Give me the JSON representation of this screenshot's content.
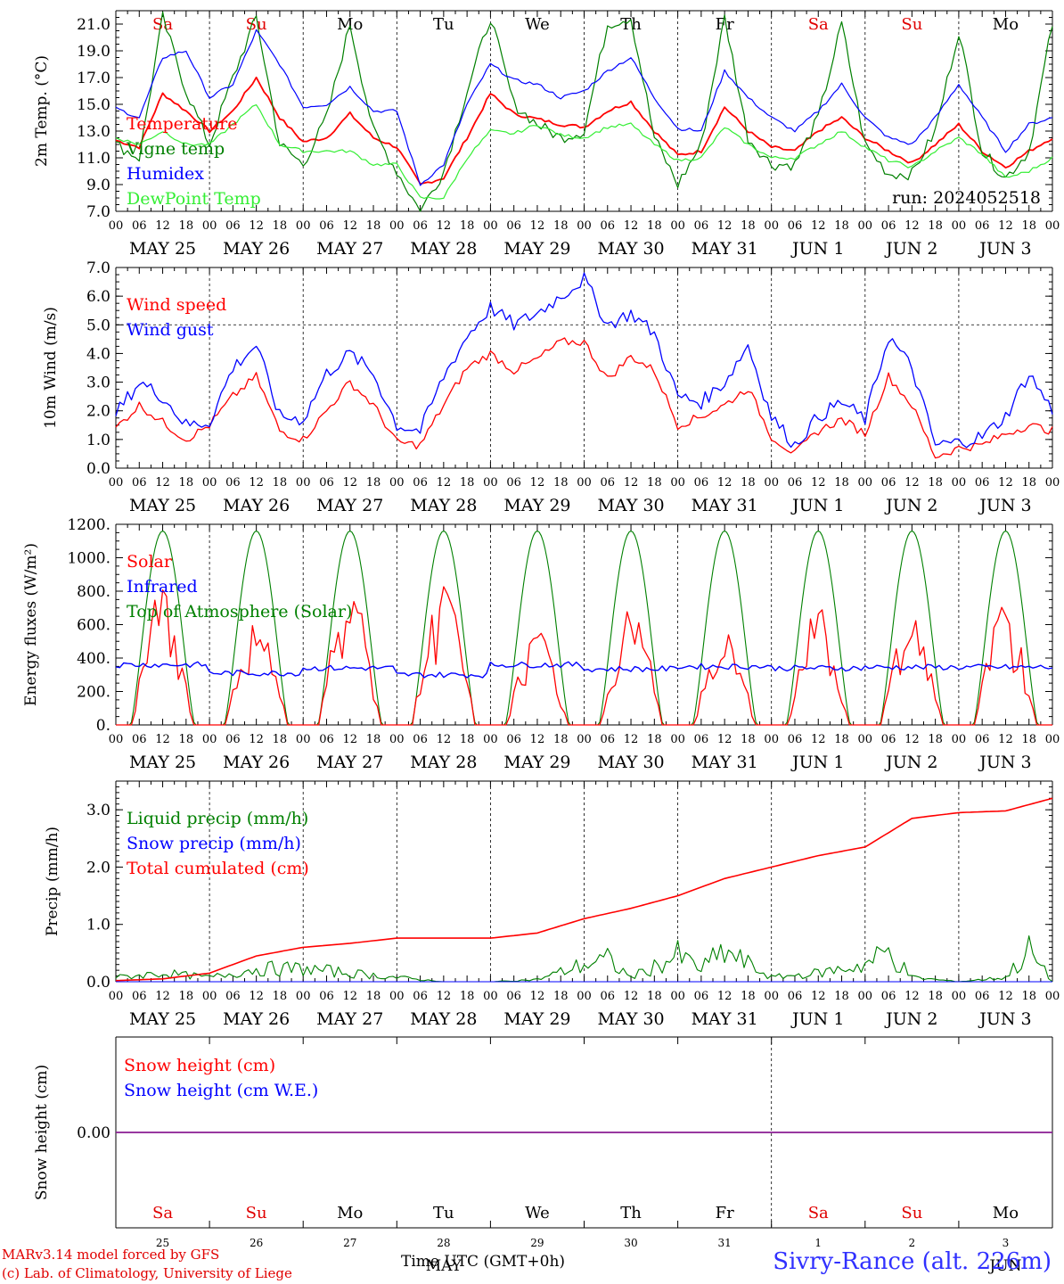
{
  "chart_data": [
    {
      "type": "line",
      "ylabel": "2m Temp. (°C)",
      "ylim": [
        7.0,
        22.0
      ],
      "yticks": [
        7.0,
        9.0,
        11.0,
        13.0,
        15.0,
        17.0,
        19.0,
        21.0
      ],
      "x_hours": [
        0,
        6,
        12,
        18
      ],
      "days": [
        "MAY 25",
        "MAY 26",
        "MAY 27",
        "MAY 28",
        "MAY 29",
        "MAY 30",
        "MAY 31",
        "JUN  1",
        "JUN  2",
        "JUN  3"
      ],
      "weekdays": [
        "Sa",
        "Su",
        "Mo",
        "Tu",
        "We",
        "Th",
        "Fr",
        "Sa",
        "Su",
        "Mo"
      ],
      "weekday_colors": [
        "#e00000",
        "#e00000",
        "#000000",
        "#000000",
        "#000000",
        "#000000",
        "#000000",
        "#e00000",
        "#e00000",
        "#000000"
      ],
      "annotation": "run: 2024052518",
      "series": [
        {
          "name": "Temperature",
          "color": "#ff0000",
          "x": [
            0,
            6,
            12,
            18,
            24,
            30,
            36,
            42,
            48,
            54,
            60,
            66,
            72,
            78,
            84,
            90,
            96,
            102,
            108,
            114,
            120,
            126,
            132,
            138,
            144,
            150,
            156,
            162,
            168,
            174,
            180,
            186,
            192,
            198,
            204,
            210,
            216,
            222,
            228,
            234,
            240
          ],
          "values": [
            12.3,
            11.8,
            15.8,
            14.5,
            13.0,
            14.5,
            17.0,
            14.0,
            12.2,
            12.5,
            14.3,
            12.5,
            11.8,
            9.0,
            9.5,
            12.5,
            15.8,
            14.3,
            13.9,
            13.5,
            13.3,
            14.5,
            15.2,
            13.0,
            11.2,
            11.5,
            14.8,
            13.0,
            11.8,
            11.5,
            13.0,
            14.0,
            12.5,
            11.5,
            10.6,
            12.0,
            13.5,
            11.5,
            10.3,
            11.5,
            12.5
          ]
        },
        {
          "name": "Vigne temp",
          "color": "#008000",
          "x": [
            0,
            6,
            12,
            18,
            24,
            30,
            36,
            42,
            48,
            54,
            60,
            66,
            72,
            78,
            84,
            90,
            96,
            102,
            108,
            114,
            120,
            126,
            132,
            138,
            144,
            150,
            156,
            162,
            168,
            174,
            180,
            186,
            192,
            198,
            204,
            210,
            216,
            222,
            228,
            234,
            240
          ],
          "values": [
            12.0,
            11.0,
            21.5,
            16.0,
            12.0,
            17.0,
            21.5,
            12.0,
            10.5,
            14.0,
            21.0,
            13.0,
            10.0,
            7.0,
            10.0,
            16.0,
            21.5,
            15.0,
            13.5,
            12.5,
            13.0,
            21.0,
            21.5,
            12.5,
            9.0,
            12.0,
            21.5,
            12.5,
            10.5,
            10.5,
            14.0,
            21.0,
            12.0,
            9.8,
            9.8,
            13.0,
            20.5,
            11.5,
            9.5,
            11.5,
            21.0
          ]
        },
        {
          "name": "Humidex",
          "color": "#0000ff",
          "x": [
            0,
            6,
            12,
            18,
            24,
            30,
            36,
            42,
            48,
            54,
            60,
            66,
            72,
            78,
            84,
            90,
            96,
            102,
            108,
            114,
            120,
            126,
            132,
            138,
            144,
            150,
            156,
            162,
            168,
            174,
            180,
            186,
            192,
            198,
            204,
            210,
            216,
            222,
            228,
            234,
            240
          ],
          "values": [
            14.7,
            14.0,
            18.5,
            19.0,
            15.5,
            16.5,
            20.5,
            18.0,
            14.8,
            15.0,
            16.3,
            14.5,
            14.5,
            9.0,
            10.5,
            15.0,
            18.0,
            16.8,
            16.5,
            15.5,
            16.0,
            17.5,
            18.5,
            15.5,
            13.2,
            13.0,
            17.5,
            15.5,
            14.0,
            13.0,
            14.5,
            16.5,
            14.0,
            12.5,
            12.0,
            14.0,
            16.5,
            14.0,
            11.5,
            13.5,
            14.0
          ]
        },
        {
          "name": "DewPoint Temp",
          "color": "#33ee33",
          "x": [
            0,
            6,
            12,
            18,
            24,
            30,
            36,
            42,
            48,
            54,
            60,
            66,
            72,
            78,
            84,
            90,
            96,
            102,
            108,
            114,
            120,
            126,
            132,
            138,
            144,
            150,
            156,
            162,
            168,
            174,
            180,
            186,
            192,
            198,
            204,
            210,
            216,
            222,
            228,
            234,
            240
          ],
          "values": [
            12.5,
            12.0,
            13.0,
            12.0,
            12.0,
            13.5,
            15.0,
            12.0,
            11.5,
            11.5,
            11.5,
            10.5,
            10.5,
            8.0,
            8.0,
            11.0,
            13.0,
            12.8,
            13.5,
            12.7,
            12.5,
            13.3,
            13.5,
            12.0,
            10.8,
            11.0,
            13.3,
            12.0,
            11.0,
            11.0,
            12.0,
            13.0,
            11.8,
            10.8,
            10.3,
            11.5,
            12.5,
            11.3,
            9.5,
            10.0,
            11.0
          ]
        }
      ]
    },
    {
      "type": "line",
      "ylabel": "10m Wind (m/s)",
      "ylim": [
        0.0,
        7.0
      ],
      "yticks": [
        0.0,
        1.0,
        2.0,
        3.0,
        4.0,
        5.0,
        6.0,
        7.0
      ],
      "x_hours": [
        0,
        6,
        12,
        18
      ],
      "days": [
        "MAY 25",
        "MAY 26",
        "MAY 27",
        "MAY 28",
        "MAY 29",
        "MAY 30",
        "MAY 31",
        "JUN  1",
        "JUN  2",
        "JUN  3"
      ],
      "reference_line": 5.0,
      "series": [
        {
          "name": "Wind speed",
          "color": "#ff0000",
          "x": [
            0,
            6,
            12,
            18,
            24,
            30,
            36,
            42,
            48,
            54,
            60,
            66,
            72,
            78,
            84,
            90,
            96,
            102,
            108,
            114,
            120,
            126,
            132,
            138,
            144,
            150,
            156,
            162,
            168,
            174,
            180,
            186,
            192,
            198,
            204,
            210,
            216,
            222,
            228,
            234,
            240
          ],
          "values": [
            1.4,
            2.2,
            1.6,
            1.0,
            1.5,
            2.5,
            3.2,
            1.3,
            1.0,
            2.0,
            3.0,
            2.2,
            0.9,
            0.8,
            2.2,
            3.5,
            4.0,
            3.4,
            3.8,
            4.4,
            4.4,
            3.1,
            3.9,
            3.4,
            1.5,
            1.8,
            2.2,
            2.8,
            1.1,
            0.5,
            1.3,
            1.7,
            1.2,
            3.2,
            2.2,
            0.4,
            0.7,
            0.8,
            1.2,
            1.5,
            1.3
          ]
        },
        {
          "name": "Wind gust",
          "color": "#0000ff",
          "x": [
            0,
            6,
            12,
            18,
            24,
            30,
            36,
            42,
            48,
            54,
            60,
            66,
            72,
            78,
            84,
            90,
            96,
            102,
            108,
            114,
            120,
            126,
            132,
            138,
            144,
            150,
            156,
            162,
            168,
            174,
            180,
            186,
            192,
            198,
            204,
            210,
            216,
            222,
            228,
            234,
            240
          ],
          "values": [
            1.9,
            3.0,
            2.5,
            1.5,
            1.6,
            3.5,
            4.3,
            1.8,
            1.7,
            3.3,
            4.0,
            3.3,
            1.5,
            1.3,
            3.2,
            4.6,
            5.6,
            5.0,
            5.4,
            6.0,
            6.6,
            5.0,
            5.4,
            4.7,
            2.5,
            2.3,
            3.0,
            4.3,
            1.8,
            0.8,
            1.8,
            2.3,
            1.7,
            4.6,
            3.5,
            0.8,
            0.9,
            1.1,
            1.8,
            3.3,
            2.0
          ]
        }
      ]
    },
    {
      "type": "line",
      "ylabel": "Energy fluxes (W/m²)",
      "ylim": [
        0,
        1200
      ],
      "yticks": [
        0,
        200,
        400,
        600,
        800,
        1000,
        1200
      ],
      "ytick_labels": [
        "0.",
        "200.",
        "400.",
        "600.",
        "800.",
        "1000.",
        "1200."
      ],
      "x_hours": [
        0,
        6,
        12,
        18
      ],
      "days": [
        "MAY 25",
        "MAY 26",
        "MAY 27",
        "MAY 28",
        "MAY 29",
        "MAY 30",
        "MAY 31",
        "JUN  1",
        "JUN  2",
        "JUN  3"
      ],
      "series": [
        {
          "name": "Solar",
          "color": "#ff0000",
          "peaks": [
            820,
            670,
            860,
            840,
            560,
            690,
            540,
            710,
            680,
            720
          ]
        },
        {
          "name": "Infrared",
          "color": "#0000ff",
          "values_daily": [
            360,
            310,
            340,
            300,
            360,
            335,
            350,
            340,
            345,
            345
          ]
        },
        {
          "name": "Top of Atmosphere (Solar)",
          "color": "#008000",
          "peak": 1160
        }
      ]
    },
    {
      "type": "line",
      "ylabel": "Precip (mm/h)",
      "ylim": [
        0.0,
        3.5
      ],
      "yticks": [
        0.0,
        1.0,
        2.0,
        3.0
      ],
      "x_hours": [
        0,
        6,
        12,
        18
      ],
      "days": [
        "MAY 25",
        "MAY 26",
        "MAY 27",
        "MAY 28",
        "MAY 29",
        "MAY 30",
        "MAY 31",
        "JUN  1",
        "JUN  2",
        "JUN  3"
      ],
      "series": [
        {
          "name": "Liquid precip (mm/h)",
          "color": "#008000",
          "x": [
            0,
            12,
            24,
            36,
            48,
            60,
            72,
            84,
            96,
            108,
            120,
            126,
            132,
            144,
            150,
            156,
            168,
            180,
            192,
            198,
            204,
            216,
            228,
            234,
            240
          ],
          "values": [
            0.1,
            0.2,
            0.1,
            0.3,
            0.3,
            0.2,
            0.1,
            0.0,
            0.0,
            0.05,
            0.4,
            0.5,
            0.1,
            0.6,
            0.3,
            0.7,
            0.1,
            0.2,
            0.4,
            0.7,
            0.1,
            0.0,
            0.1,
            0.7,
            0.0
          ]
        },
        {
          "name": "Snow precip (mm/h)",
          "color": "#0000ff",
          "x": [
            0,
            240
          ],
          "values": [
            0.0,
            0.0
          ]
        },
        {
          "name": "Total cumulated (cm)",
          "color": "#ff0000",
          "x": [
            0,
            12,
            24,
            36,
            48,
            60,
            72,
            84,
            96,
            108,
            120,
            132,
            144,
            156,
            168,
            180,
            192,
            198,
            204,
            216,
            228,
            240
          ],
          "values": [
            0.02,
            0.05,
            0.15,
            0.45,
            0.6,
            0.67,
            0.76,
            0.76,
            0.76,
            0.85,
            1.1,
            1.28,
            1.5,
            1.8,
            2.0,
            2.2,
            2.35,
            2.6,
            2.85,
            2.95,
            2.98,
            3.2
          ]
        }
      ]
    },
    {
      "type": "line",
      "ylabel": "Snow height (cm)",
      "ylim": [
        -1.0,
        1.0
      ],
      "yticks": [
        0.0
      ],
      "ytick_labels": [
        "0.00"
      ],
      "days_short": [
        "25",
        "26",
        "27",
        "28",
        "29",
        "30",
        "31",
        "1",
        "2",
        "3"
      ],
      "weekdays": [
        "Sa",
        "Su",
        "Mo",
        "Tu",
        "We",
        "Th",
        "Fr",
        "Sa",
        "Su",
        "Mo"
      ],
      "weekday_colors": [
        "#e00000",
        "#e00000",
        "#000000",
        "#000000",
        "#000000",
        "#000000",
        "#000000",
        "#e00000",
        "#e00000",
        "#000000"
      ],
      "month_labels": [
        "MAY",
        "JUN"
      ],
      "series": [
        {
          "name": "Snow height (cm)",
          "color": "#ff0000",
          "x": [
            0,
            240
          ],
          "values": [
            0.0,
            0.0
          ]
        },
        {
          "name": "Snow height (cm W.E.)",
          "color": "#0000ff",
          "x": [
            0,
            240
          ],
          "values": [
            0.0,
            0.0
          ]
        }
      ]
    }
  ],
  "footer": {
    "model": "MARv3.14 model forced by GFS",
    "credit": "(c) Lab. of Climatology, University of Liege",
    "xlabel": "Time UTC (GMT+0h)",
    "station": "Sivry-Rance (alt. 226m)"
  }
}
